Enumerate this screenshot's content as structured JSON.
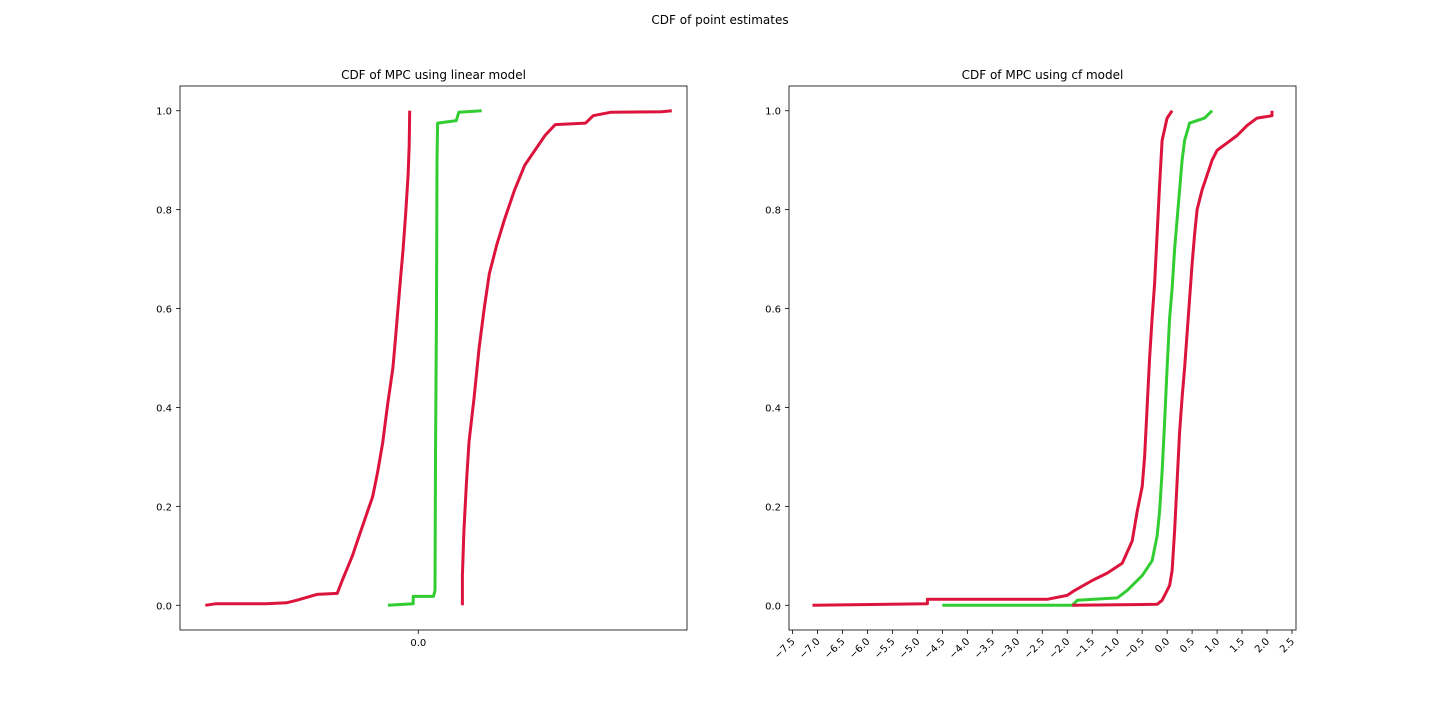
{
  "figure": {
    "suptitle": "CDF of point estimates",
    "colors": {
      "outer": "#dc143c",
      "median": "#32cd32",
      "axes": "#000000"
    }
  },
  "chart_data": [
    {
      "type": "line",
      "title": "CDF of MPC using linear model",
      "xlabel": "",
      "ylabel": "",
      "xlim": [
        -0.47,
        0.53
      ],
      "ylim": [
        -0.05,
        1.05
      ],
      "xticks": [
        0.0
      ],
      "xtick_labels": [
        "0.0"
      ],
      "yticks": [
        0.0,
        0.2,
        0.4,
        0.6,
        0.8,
        1.0
      ],
      "ytick_labels": [
        "0.0",
        "0.2",
        "0.4",
        "0.6",
        "0.8",
        "1.0"
      ],
      "grid": false,
      "series": [
        {
          "color": "#dc143c",
          "points": [
            [
              -0.42,
              0.0
            ],
            [
              -0.4,
              0.003
            ],
            [
              -0.3,
              0.003
            ],
            [
              -0.26,
              0.005
            ],
            [
              -0.24,
              0.01
            ],
            [
              -0.2,
              0.022
            ],
            [
              -0.16,
              0.024
            ],
            [
              -0.15,
              0.05
            ],
            [
              -0.14,
              0.075
            ],
            [
              -0.13,
              0.1
            ],
            [
              -0.12,
              0.13
            ],
            [
              -0.11,
              0.16
            ],
            [
              -0.1,
              0.19
            ],
            [
              -0.09,
              0.22
            ],
            [
              -0.08,
              0.27
            ],
            [
              -0.07,
              0.33
            ],
            [
              -0.065,
              0.37
            ],
            [
              -0.06,
              0.41
            ],
            [
              -0.05,
              0.48
            ],
            [
              -0.045,
              0.54
            ],
            [
              -0.04,
              0.6
            ],
            [
              -0.035,
              0.66
            ],
            [
              -0.03,
              0.72
            ],
            [
              -0.025,
              0.79
            ],
            [
              -0.02,
              0.87
            ],
            [
              -0.018,
              0.93
            ],
            [
              -0.017,
              1.0
            ]
          ]
        },
        {
          "color": "#32cd32",
          "points": [
            [
              -0.06,
              0.0
            ],
            [
              -0.01,
              0.003
            ],
            [
              -0.01,
              0.018
            ],
            [
              0.03,
              0.018
            ],
            [
              0.033,
              0.03
            ],
            [
              0.034,
              0.3
            ],
            [
              0.036,
              0.6
            ],
            [
              0.037,
              0.9
            ],
            [
              0.038,
              0.975
            ],
            [
              0.075,
              0.98
            ],
            [
              0.08,
              0.997
            ],
            [
              0.125,
              1.0
            ]
          ]
        },
        {
          "color": "#dc143c",
          "points": [
            [
              0.087,
              0.0
            ],
            [
              0.087,
              0.06
            ],
            [
              0.09,
              0.15
            ],
            [
              0.095,
              0.25
            ],
            [
              0.1,
              0.33
            ],
            [
              0.11,
              0.42
            ],
            [
              0.12,
              0.52
            ],
            [
              0.13,
              0.6
            ],
            [
              0.14,
              0.67
            ],
            [
              0.155,
              0.73
            ],
            [
              0.17,
              0.78
            ],
            [
              0.19,
              0.84
            ],
            [
              0.21,
              0.89
            ],
            [
              0.23,
              0.92
            ],
            [
              0.25,
              0.95
            ],
            [
              0.27,
              0.972
            ],
            [
              0.33,
              0.975
            ],
            [
              0.345,
              0.99
            ],
            [
              0.38,
              0.997
            ],
            [
              0.48,
              0.998
            ],
            [
              0.5,
              1.0
            ]
          ]
        }
      ]
    },
    {
      "type": "line",
      "title": "CDF of MPC using cf model",
      "xlabel": "",
      "ylabel": "",
      "xlim": [
        -7.57,
        2.58
      ],
      "ylim": [
        -0.05,
        1.05
      ],
      "xticks": [
        -7.5,
        -7.0,
        -6.5,
        -6.0,
        -5.5,
        -5.0,
        -4.5,
        -4.0,
        -3.5,
        -3.0,
        -2.5,
        -2.0,
        -1.5,
        -1.0,
        -0.5,
        0.0,
        0.5,
        1.0,
        1.5,
        2.0,
        2.5
      ],
      "xtick_labels": [
        "−7.5",
        "−7.0",
        "−6.5",
        "−6.0",
        "−5.5",
        "−5.0",
        "−4.5",
        "−4.0",
        "−3.5",
        "−3.0",
        "−2.5",
        "−2.0",
        "−1.5",
        "−1.0",
        "−0.5",
        "0.0",
        "0.5",
        "1.0",
        "1.5",
        "2.0",
        "2.5"
      ],
      "yticks": [
        0.0,
        0.2,
        0.4,
        0.6,
        0.8,
        1.0
      ],
      "ytick_labels": [
        "0.0",
        "0.2",
        "0.4",
        "0.6",
        "0.8",
        "1.0"
      ],
      "grid": false,
      "series": [
        {
          "color": "#dc143c",
          "points": [
            [
              -7.1,
              0.0
            ],
            [
              -4.8,
              0.003
            ],
            [
              -4.8,
              0.012
            ],
            [
              -2.4,
              0.012
            ],
            [
              -2.0,
              0.02
            ],
            [
              -1.85,
              0.03
            ],
            [
              -1.5,
              0.05
            ],
            [
              -1.2,
              0.065
            ],
            [
              -0.9,
              0.085
            ],
            [
              -0.7,
              0.13
            ],
            [
              -0.6,
              0.19
            ],
            [
              -0.5,
              0.24
            ],
            [
              -0.45,
              0.3
            ],
            [
              -0.4,
              0.4
            ],
            [
              -0.35,
              0.5
            ],
            [
              -0.3,
              0.58
            ],
            [
              -0.25,
              0.65
            ],
            [
              -0.2,
              0.75
            ],
            [
              -0.15,
              0.85
            ],
            [
              -0.1,
              0.94
            ],
            [
              0.0,
              0.985
            ],
            [
              0.1,
              1.0
            ]
          ]
        },
        {
          "color": "#32cd32",
          "points": [
            [
              -4.5,
              0.0
            ],
            [
              -1.9,
              0.0
            ],
            [
              -1.8,
              0.01
            ],
            [
              -1.0,
              0.015
            ],
            [
              -0.8,
              0.03
            ],
            [
              -0.5,
              0.06
            ],
            [
              -0.3,
              0.09
            ],
            [
              -0.2,
              0.14
            ],
            [
              -0.15,
              0.19
            ],
            [
              -0.1,
              0.27
            ],
            [
              -0.05,
              0.37
            ],
            [
              0.0,
              0.48
            ],
            [
              0.05,
              0.58
            ],
            [
              0.1,
              0.64
            ],
            [
              0.15,
              0.72
            ],
            [
              0.2,
              0.78
            ],
            [
              0.25,
              0.84
            ],
            [
              0.3,
              0.9
            ],
            [
              0.35,
              0.94
            ],
            [
              0.45,
              0.975
            ],
            [
              0.75,
              0.985
            ],
            [
              0.9,
              1.0
            ]
          ]
        },
        {
          "color": "#dc143c",
          "points": [
            [
              -1.9,
              0.0
            ],
            [
              -0.2,
              0.002
            ],
            [
              -0.1,
              0.01
            ],
            [
              0.05,
              0.04
            ],
            [
              0.1,
              0.07
            ],
            [
              0.15,
              0.15
            ],
            [
              0.2,
              0.25
            ],
            [
              0.25,
              0.35
            ],
            [
              0.3,
              0.42
            ],
            [
              0.35,
              0.48
            ],
            [
              0.4,
              0.55
            ],
            [
              0.45,
              0.62
            ],
            [
              0.5,
              0.69
            ],
            [
              0.55,
              0.75
            ],
            [
              0.6,
              0.8
            ],
            [
              0.7,
              0.84
            ],
            [
              0.8,
              0.87
            ],
            [
              0.9,
              0.9
            ],
            [
              1.0,
              0.92
            ],
            [
              1.2,
              0.935
            ],
            [
              1.4,
              0.95
            ],
            [
              1.6,
              0.97
            ],
            [
              1.8,
              0.985
            ],
            [
              2.1,
              0.99
            ],
            [
              2.1,
              1.0
            ]
          ]
        }
      ]
    }
  ]
}
